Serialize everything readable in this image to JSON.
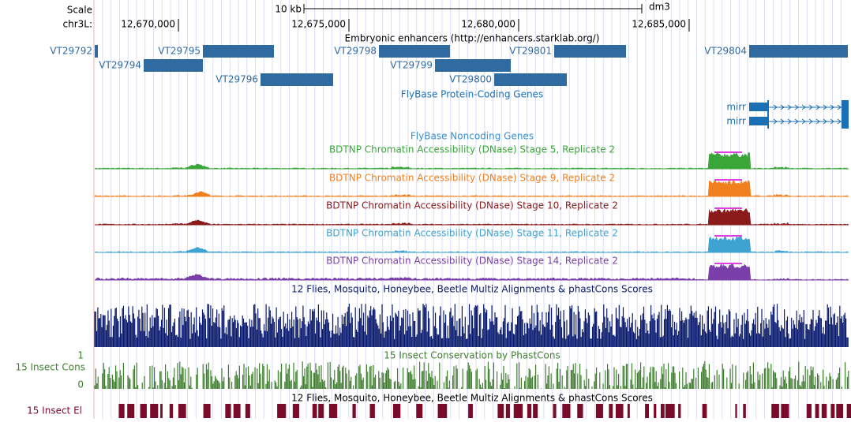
{
  "ruler": {
    "scale_label": "Scale",
    "scale_value": "10 kb",
    "assembly": "dm3",
    "chrom": "chr3L:",
    "ticks": [
      "12,670,000",
      "12,675,000",
      "12,680,000",
      "12,685,000"
    ]
  },
  "enhancers": {
    "title": "Embryonic enhancers (http://enhancers.starklab.org/)",
    "items": [
      "VT29792",
      "VT29795",
      "VT29798",
      "VT29801",
      "VT29804",
      "VT29794",
      "VT29799",
      "VT29796",
      "VT29800"
    ]
  },
  "flybase_coding": {
    "title": "FlyBase Protein-Coding Genes",
    "genes": [
      "mirr",
      "mirr"
    ]
  },
  "flybase_noncoding": {
    "title": "FlyBase Noncoding Genes"
  },
  "dnase": [
    {
      "title": "BDTNP Chromatin Accessibility (DNase) Stage 5, Replicate 2",
      "color": "#3aa63a"
    },
    {
      "title": "BDTNP Chromatin Accessibility (DNase) Stage 9, Replicate 2",
      "color": "#f07f1e"
    },
    {
      "title": "BDTNP Chromatin Accessibility (DNase) Stage 10, Replicate 2",
      "color": "#8b1a1a"
    },
    {
      "title": "BDTNP Chromatin Accessibility (DNase) Stage 11, Replicate 2",
      "color": "#3ea3d2"
    },
    {
      "title": "BDTNP Chromatin Accessibility (DNase) Stage 14, Replicate 2",
      "color": "#7a3fa8"
    }
  ],
  "multiz": {
    "title": "12 Flies, Mosquito, Honeybee, Beetle Multiz Alignments & phastCons Scores",
    "color": "#0a1a6e"
  },
  "phastcons": {
    "title": "15 Insect Conservation by PhastCons",
    "side_label": "15 Insect Cons",
    "top_label": "1",
    "bottom_label": "0",
    "color": "#3f7f2f"
  },
  "elements": {
    "title": "12 Flies, Mosquito, Honeybee, Beetle Multiz Alignments & phastCons Scores",
    "side_label": "15 Insect El",
    "color": "#7a0b2a"
  }
}
